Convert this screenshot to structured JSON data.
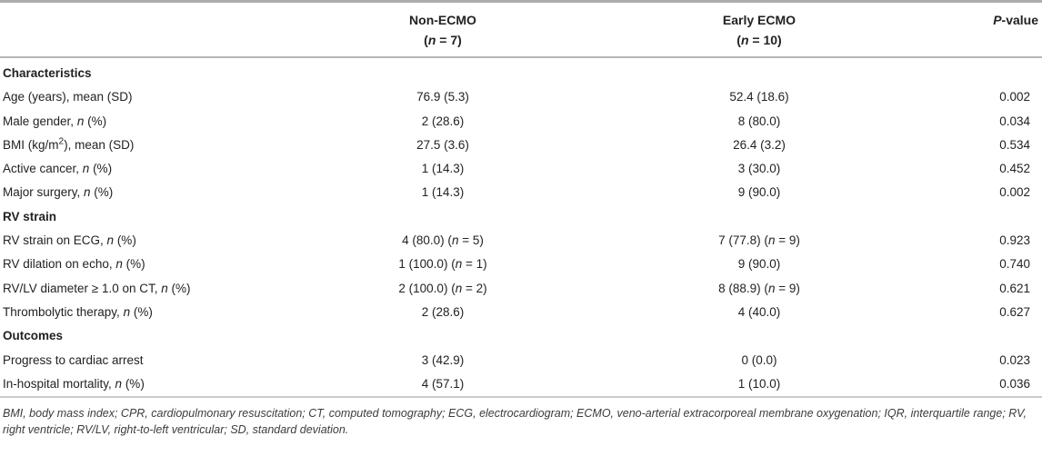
{
  "table": {
    "header": {
      "label_col": "",
      "non_ecmo": {
        "line1": "Non-ECMO",
        "line2": "(*n* = 7)"
      },
      "early_ecmo": {
        "line1": "Early ECMO",
        "line2": "(*n* = 10)"
      },
      "p_value": "*P*-value"
    },
    "rows": [
      {
        "type": "section",
        "label": "Characteristics",
        "non_ecmo": "",
        "early_ecmo": "",
        "p": ""
      },
      {
        "type": "data",
        "label": "Age (years), mean (SD)",
        "non_ecmo": "76.9 (5.3)",
        "early_ecmo": "52.4 (18.6)",
        "p": "0.002"
      },
      {
        "type": "data",
        "label": "Male gender, *n* (%)",
        "non_ecmo": "2 (28.6)",
        "early_ecmo": "8 (80.0)",
        "p": "0.034"
      },
      {
        "type": "data",
        "label": "BMI (kg/m^2^), mean (SD)",
        "non_ecmo": "27.5 (3.6)",
        "early_ecmo": "26.4 (3.2)",
        "p": "0.534"
      },
      {
        "type": "data",
        "label": "Active cancer, *n* (%)",
        "non_ecmo": "1 (14.3)",
        "early_ecmo": "3 (30.0)",
        "p": "0.452"
      },
      {
        "type": "data",
        "label": "Major surgery, *n* (%)",
        "non_ecmo": "1 (14.3)",
        "early_ecmo": "9 (90.0)",
        "p": "0.002"
      },
      {
        "type": "section",
        "label": "RV strain",
        "non_ecmo": "",
        "early_ecmo": "",
        "p": ""
      },
      {
        "type": "data",
        "label": "RV strain on ECG, *n* (%)",
        "non_ecmo": "4 (80.0) (*n* = 5)",
        "early_ecmo": "7 (77.8) (*n* = 9)",
        "p": "0.923"
      },
      {
        "type": "data",
        "label": "RV dilation on echo, *n* (%)",
        "non_ecmo": "1 (100.0) (*n* = 1)",
        "early_ecmo": "9 (90.0)",
        "p": "0.740"
      },
      {
        "type": "data",
        "label": "RV/LV diameter ≥ 1.0 on CT, *n* (%)",
        "non_ecmo": "2 (100.0) (*n* = 2)",
        "early_ecmo": "8 (88.9) (*n* = 9)",
        "p": "0.621"
      },
      {
        "type": "data",
        "label": "Thrombolytic therapy, *n* (%)",
        "non_ecmo": "2 (28.6)",
        "early_ecmo": "4 (40.0)",
        "p": "0.627"
      },
      {
        "type": "section",
        "label": "Outcomes",
        "non_ecmo": "",
        "early_ecmo": "",
        "p": ""
      },
      {
        "type": "data",
        "label": "Progress to cardiac arrest",
        "non_ecmo": "3 (42.9)",
        "early_ecmo": "0 (0.0)",
        "p": "0.023"
      },
      {
        "type": "data",
        "label": "In-hospital mortality, *n* (%)",
        "non_ecmo": "4 (57.1)",
        "early_ecmo": "1 (10.0)",
        "p": "0.036"
      }
    ]
  },
  "footnote": "BMI, body mass index; CPR, cardiopulmonary resuscitation; CT, computed tomography; ECG, electrocardiogram; ECMO, veno-arterial extracorporeal membrane oxygenation; IQR, interquartile range; RV, right ventricle; RV/LV, right-to-left ventricular; SD, standard deviation."
}
